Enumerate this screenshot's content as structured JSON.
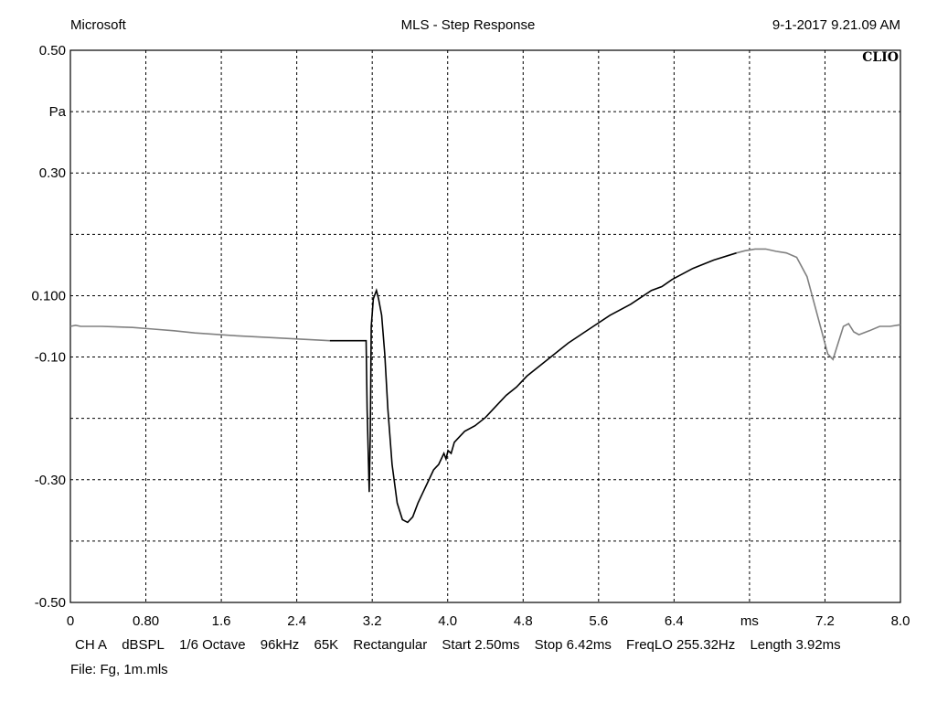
{
  "header": {
    "left": "Microsoft",
    "title": "MLS - Step Response",
    "timestamp": "9-1-2017 9.21.09 AM"
  },
  "brand": "CLIO",
  "settings": {
    "channel": "CH A",
    "units": "dBSPL",
    "smoothing": "1/6 Octave",
    "sample_rate": "96kHz",
    "size": "65K",
    "window": "Rectangular",
    "start": "Start 2.50ms",
    "stop": "Stop 6.42ms",
    "freq_lo": "FreqLO 255.32Hz",
    "length": "Length 3.92ms"
  },
  "file": "File: Fg, 1m.mls",
  "colors": {
    "grid": "#000000",
    "trace": "#000000",
    "trace_outside": "#808080"
  },
  "chart_data": {
    "type": "line",
    "title": "MLS - Step Response",
    "xlabel": "ms",
    "ylabel": "Pa",
    "xlim": [
      0,
      8.0
    ],
    "ylim": [
      -0.5,
      0.5
    ],
    "grid": true,
    "x_ticks": [
      "0",
      "0.80",
      "1.6",
      "2.4",
      "3.2",
      "4.0",
      "4.8",
      "5.6",
      "6.4",
      "ms",
      "7.2",
      "8.0"
    ],
    "y_ticks": [
      "0.50",
      "Pa",
      "0.30",
      "",
      "0.100",
      "-0.10",
      "",
      "-0.30",
      "",
      "-0.50"
    ],
    "window": {
      "start": 2.5,
      "stop": 6.42
    },
    "series": [
      {
        "x": [
          0,
          0.05,
          0.1,
          0.3,
          0.6,
          0.8,
          1.0,
          1.2,
          1.6,
          2.0,
          2.4,
          2.5,
          2.6,
          2.85,
          2.86,
          2.88,
          2.89,
          2.9,
          2.92,
          2.95,
          2.97,
          3.0,
          3.03,
          3.06,
          3.1,
          3.15,
          3.2,
          3.25,
          3.3,
          3.35,
          3.4,
          3.45,
          3.5,
          3.55,
          3.6,
          3.62,
          3.64,
          3.67,
          3.7,
          3.75,
          3.8,
          3.9,
          4.0,
          4.1,
          4.2,
          4.3,
          4.4,
          4.6,
          4.8,
          5.0,
          5.2,
          5.4,
          5.6,
          5.7,
          5.8,
          6.0,
          6.2,
          6.42,
          6.5,
          6.6,
          6.7,
          6.8,
          6.9,
          7.0,
          7.1,
          7.2,
          7.3,
          7.35,
          7.4,
          7.45,
          7.5,
          7.55,
          7.6,
          7.7,
          7.8,
          7.9,
          8.0
        ],
        "y": [
          0.0,
          0.002,
          0.0,
          0.0,
          -0.002,
          -0.005,
          -0.008,
          -0.012,
          -0.017,
          -0.021,
          -0.025,
          -0.026,
          -0.026,
          -0.026,
          -0.15,
          -0.3,
          -0.2,
          0.0,
          0.05,
          0.065,
          0.05,
          0.02,
          -0.05,
          -0.15,
          -0.25,
          -0.32,
          -0.35,
          -0.355,
          -0.345,
          -0.32,
          -0.3,
          -0.28,
          -0.26,
          -0.25,
          -0.23,
          -0.24,
          -0.225,
          -0.23,
          -0.21,
          -0.2,
          -0.19,
          -0.18,
          -0.165,
          -0.145,
          -0.125,
          -0.11,
          -0.09,
          -0.06,
          -0.03,
          -0.005,
          0.02,
          0.04,
          0.065,
          0.072,
          0.085,
          0.105,
          0.12,
          0.133,
          0.137,
          0.14,
          0.14,
          0.136,
          0.133,
          0.125,
          0.09,
          0.02,
          -0.05,
          -0.06,
          -0.03,
          0.0,
          0.005,
          -0.01,
          -0.015,
          -0.008,
          0.0,
          0.0,
          0.003
        ]
      }
    ]
  }
}
